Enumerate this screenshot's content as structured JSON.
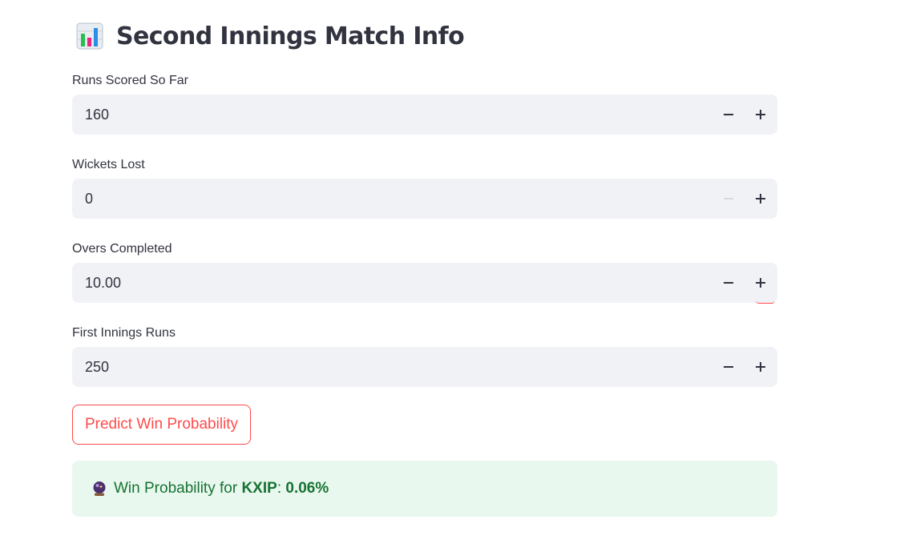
{
  "header": {
    "icon": "bar-chart-icon",
    "title": "Second Innings Match Info"
  },
  "fields": [
    {
      "label": "Runs Scored So Far",
      "value": "160",
      "minus_disabled": false
    },
    {
      "label": "Wickets Lost",
      "value": "0",
      "minus_disabled": true
    },
    {
      "label": "Overs Completed",
      "value": "10.00",
      "minus_disabled": false
    },
    {
      "label": "First Innings Runs",
      "value": "250",
      "minus_disabled": false
    }
  ],
  "predict_button": {
    "label": "Predict Win Probability"
  },
  "result": {
    "icon": "crystal-ball-icon",
    "prefix": "Win Probability for ",
    "team": "KXIP",
    "separator": ": ",
    "probability": "0.06%"
  },
  "colors": {
    "accent": "#ff4b4b",
    "input_bg": "#f0f2f6",
    "success_bg": "#e8f8ee",
    "success_text": "#177233"
  }
}
